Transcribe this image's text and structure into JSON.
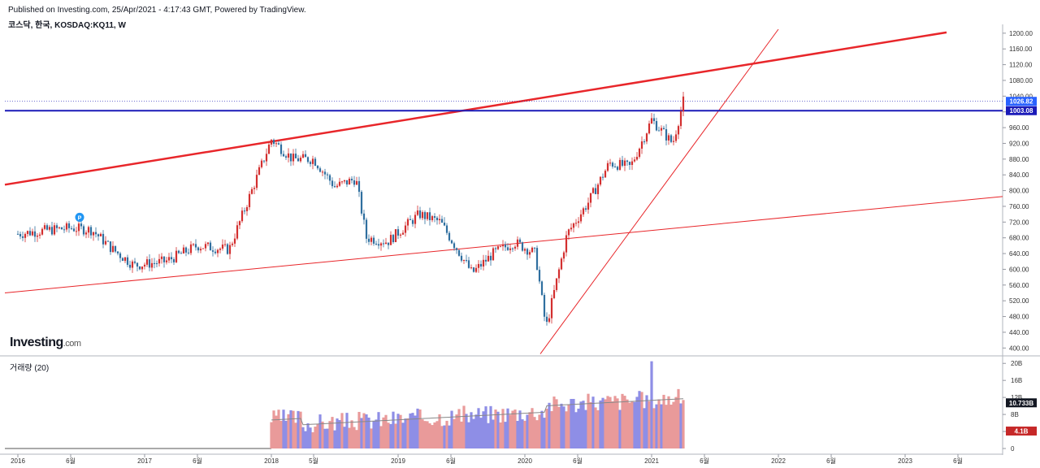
{
  "header": {
    "published": "Published on Investing.com, 25/Apr/2021 - 4:17:43 GMT, Powered by TradingView.",
    "symbol": "코스닥, 한국, KOSDAQ:KQ11, W"
  },
  "logo": {
    "text": "Investing",
    "domain": ".com"
  },
  "volume_panel": {
    "title": "거래량 (20)"
  },
  "colors": {
    "up": "#26a69a",
    "down": "#c62828",
    "up_candle": "#2f6f9f",
    "down_candle": "#d32f2f",
    "vol_up": "#8e8ee6",
    "vol_down": "#e99a9a",
    "trend_line": "#e8262a",
    "support_line": "#1a1ab8"
  },
  "chart_data": [
    {
      "type": "candlestick",
      "title": "",
      "interval": "W",
      "ylim": [
        380,
        1210
      ],
      "yticks": [
        400,
        440,
        480,
        520,
        560,
        600,
        640,
        680,
        720,
        760,
        800,
        840,
        880,
        920,
        960,
        1000,
        1040,
        1080,
        1120,
        1160,
        1200
      ],
      "x_ticks": [
        "2016",
        "6월",
        "2017",
        "6월",
        "2018",
        "5월",
        "2019",
        "6월",
        "2020",
        "6월",
        "2021",
        "6월",
        "2022",
        "6월",
        "2023",
        "6월"
      ],
      "last_price_label": "1026.82",
      "horizontal_line_label": "1003.08",
      "price_series": [
        {
          "date": "2016-01",
          "close": 690
        },
        {
          "date": "2016-04",
          "close": 700
        },
        {
          "date": "2016-06",
          "close": 705
        },
        {
          "date": "2016-08",
          "close": 700
        },
        {
          "date": "2016-10",
          "close": 650
        },
        {
          "date": "2016-12",
          "close": 610
        },
        {
          "date": "2017-03",
          "close": 620
        },
        {
          "date": "2017-06",
          "close": 660
        },
        {
          "date": "2017-09",
          "close": 650
        },
        {
          "date": "2017-11",
          "close": 790
        },
        {
          "date": "2018-01",
          "close": 930
        },
        {
          "date": "2018-03",
          "close": 880
        },
        {
          "date": "2018-05",
          "close": 880
        },
        {
          "date": "2018-07",
          "close": 810
        },
        {
          "date": "2018-09",
          "close": 830
        },
        {
          "date": "2018-10",
          "close": 680
        },
        {
          "date": "2018-12",
          "close": 670
        },
        {
          "date": "2019-03",
          "close": 740
        },
        {
          "date": "2019-05",
          "close": 720
        },
        {
          "date": "2019-08",
          "close": 590
        },
        {
          "date": "2019-10",
          "close": 640
        },
        {
          "date": "2019-12",
          "close": 669
        },
        {
          "date": "2020-02",
          "close": 640
        },
        {
          "date": "2020-03",
          "close": 450
        },
        {
          "date": "2020-05",
          "close": 690
        },
        {
          "date": "2020-07",
          "close": 770
        },
        {
          "date": "2020-09",
          "close": 870
        },
        {
          "date": "2020-11",
          "close": 860
        },
        {
          "date": "2021-01",
          "close": 980
        },
        {
          "date": "2021-03",
          "close": 920
        },
        {
          "date": "2021-04",
          "close": 1026.82
        }
      ],
      "volume": {
        "yticks": [
          "0",
          "4B",
          "8B",
          "12B",
          "16B",
          "20B"
        ],
        "ylim": [
          0,
          21
        ],
        "current_ma_label": "10.733B",
        "current_volume_label": "4.1B"
      },
      "annotations": {
        "marker": "P"
      }
    }
  ]
}
